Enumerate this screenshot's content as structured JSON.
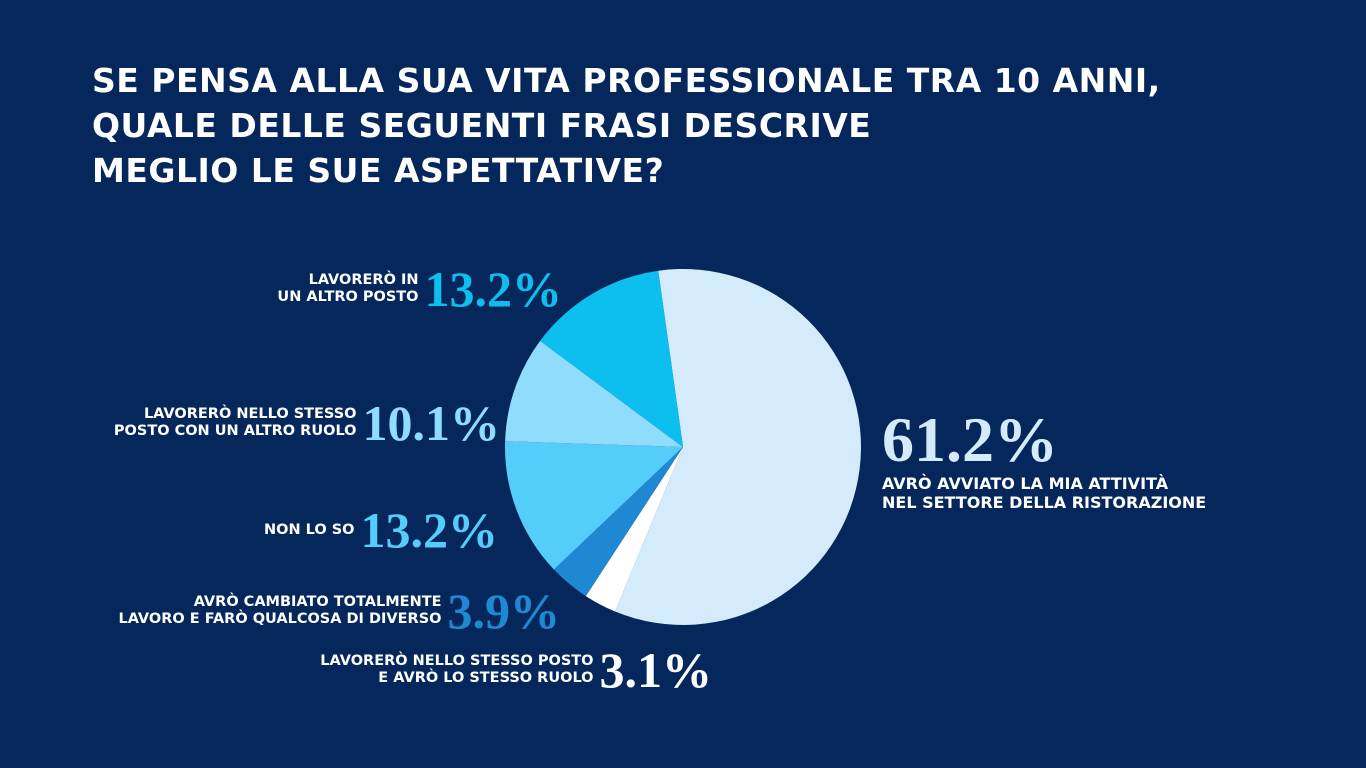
{
  "chart_data": {
    "type": "pie",
    "title": "SE PENSA ALLA SUA VITA PROFESSIONALE TRA 10 ANNI,\nQUALE DELLE SEGUENTI FRASI DESCRIVE\nMEGLIO LE SUE ASPETTATIVE?",
    "categories": [
      "AVRÒ AVVIATO LA MIA ATTIVITÀ\nNEL SETTORE DELLA RISTORAZIONE",
      "LAVORERÒ NELLO STESSO POSTO\nE AVRÒ LO STESSO RUOLO",
      "AVRÒ CAMBIATO TOTALMENTE\nLAVORO E FARÒ QUALCOSA DI DIVERSO",
      "NON LO SO",
      "LAVORERÒ NELLO STESSO\nPOSTO CON UN ALTRO RUOLO",
      "LAVORERÒ IN\nUN ALTRO POSTO"
    ],
    "values": [
      61.2,
      3.1,
      3.9,
      13.2,
      10.1,
      13.2
    ],
    "value_labels": [
      "61.2%",
      "3.1%",
      "3.9%",
      "13.2%",
      "10.1%",
      "13.2%"
    ],
    "colors": [
      "#d3ebfb",
      "#ffffff",
      "#1f88d2",
      "#55cdfb",
      "#8fdcfd",
      "#0cbfee"
    ]
  }
}
